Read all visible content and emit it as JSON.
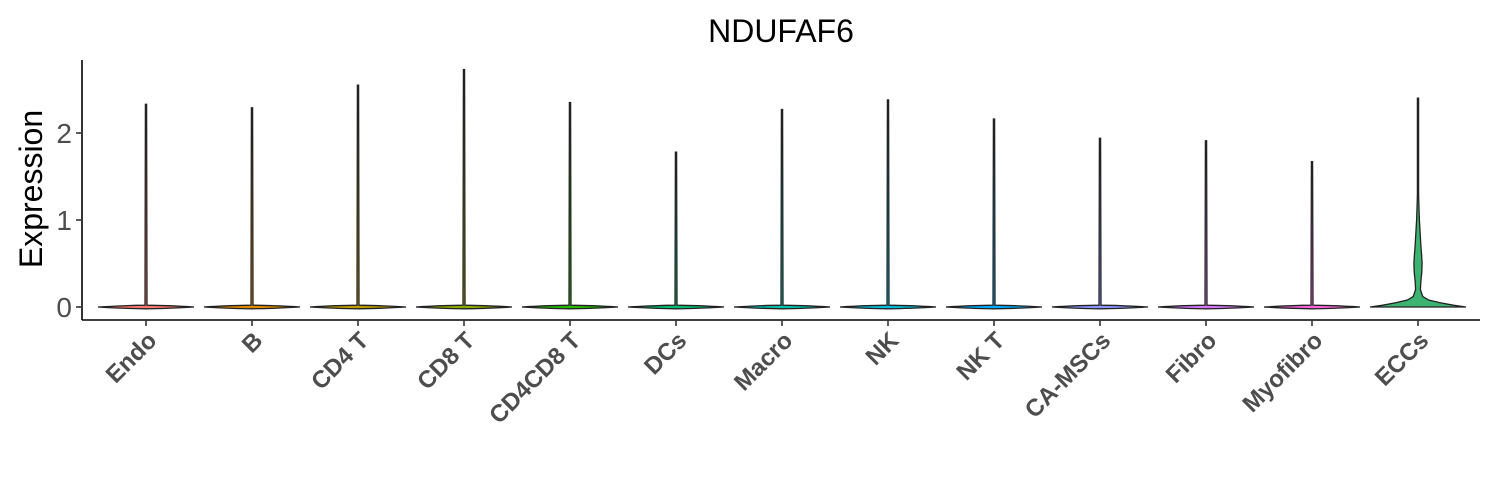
{
  "chart_data": {
    "type": "violin",
    "title": "NDUFAF6",
    "ylabel": "Expression",
    "xlabel": "",
    "ylim": [
      -0.15,
      2.85
    ],
    "yticks": [
      0,
      1,
      2
    ],
    "legend": "none",
    "grid": false,
    "categories": [
      "Endo",
      "B",
      "CD4 T",
      "CD8 T",
      "CD4CD8 T",
      "DCs",
      "Macro",
      "NK",
      "NK T",
      "CA-MSCs",
      "Fibro",
      "Myofibro",
      "ECCs"
    ],
    "max_values": [
      2.33,
      2.29,
      2.55,
      2.73,
      2.35,
      1.78,
      2.27,
      2.38,
      2.16,
      1.94,
      1.91,
      1.67,
      2.4
    ],
    "fill_colors": [
      "#F8766D",
      "#E18A00",
      "#BE9C00",
      "#8CAB00",
      "#24B700",
      "#00BE70",
      "#00C1AB",
      "#00BBDA",
      "#00ACFC",
      "#8B93FF",
      "#D575FE",
      "#F962DD",
      "#3CB371"
    ],
    "eccs_density": {
      "y": [
        0.0,
        0.02,
        0.05,
        0.08,
        0.12,
        0.2,
        0.3,
        0.4,
        0.5,
        0.6,
        0.7,
        0.8,
        0.9,
        1.0,
        1.1,
        1.2,
        1.3,
        1.45,
        1.6,
        1.8,
        2.0,
        2.2,
        2.4
      ],
      "density": [
        1.0,
        0.75,
        0.45,
        0.22,
        0.1,
        0.05,
        0.06,
        0.08,
        0.085,
        0.075,
        0.06,
        0.05,
        0.04,
        0.03,
        0.022,
        0.016,
        0.01,
        0.005,
        0.003,
        0.0015,
        0.001,
        0.0005,
        0.0
      ]
    }
  }
}
